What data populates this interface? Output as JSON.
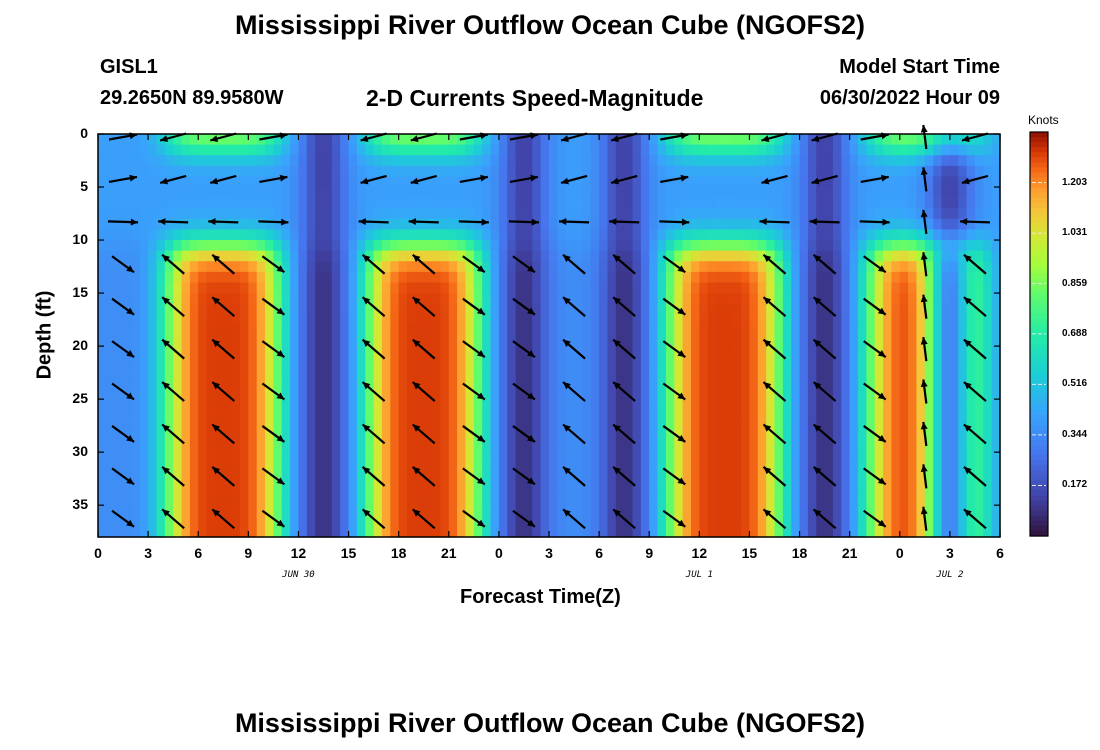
{
  "page": {
    "title": "Mississippi River Outflow Ocean Cube (NGOFS2)",
    "footer_title": "Mississippi River Outflow Ocean Cube (NGOFS2)",
    "station_id": "GISL1",
    "station_coords": "29.2650N  89.9580W",
    "plot_subtitle": "2-D Currents Speed-Magnitude",
    "model_start_label": "Model Start Time",
    "model_start_value": "06/30/2022 Hour 09"
  },
  "chart_data": {
    "type": "heatmap",
    "title": "2-D Currents Speed-Magnitude",
    "xlabel": "Forecast Time(Z)",
    "ylabel": "Depth (ft)",
    "x_tick_labels": [
      "0",
      "3",
      "6",
      "9",
      "12",
      "15",
      "18",
      "21",
      "0",
      "3",
      "6",
      "9",
      "12",
      "15",
      "18",
      "21",
      "0",
      "3",
      "6"
    ],
    "x_range_hours": [
      0,
      54
    ],
    "date_labels": [
      {
        "text": "JUN 30",
        "hour": 12
      },
      {
        "text": "JUL 1",
        "hour": 36
      },
      {
        "text": "JUL 2",
        "hour": 51
      }
    ],
    "y_ticks": [
      0,
      5,
      10,
      15,
      20,
      25,
      30,
      35
    ],
    "y_tick_labels": [
      "0",
      "5",
      "10",
      "15",
      "20",
      "25",
      "30",
      "35"
    ],
    "ylim": [
      0,
      38
    ],
    "colorbar": {
      "label": "Knots",
      "ticks": [
        1.203,
        1.031,
        0.859,
        0.688,
        0.516,
        0.344,
        0.172
      ],
      "tick_labels": [
        "1.203",
        "1.031",
        "0.859",
        "0.688",
        "0.516",
        "0.344",
        "0.172"
      ],
      "range": [
        0.0,
        1.375
      ]
    },
    "speed_model": {
      "ebb_peaks_hours": [
        7.5,
        19.5,
        37.5,
        49.5
      ],
      "slack_hours": [
        13.5,
        25.5,
        31.5,
        43.5,
        51.0
      ],
      "peak_speed_knots": 1.3,
      "min_speed_knots": 0.08
    },
    "vector_rows_depth_ft": [
      0,
      4,
      8,
      12,
      16,
      20,
      24,
      28,
      32,
      36
    ],
    "vector_cols_hours": [
      1.5,
      4.5,
      7.5,
      10.5,
      16.5,
      19.5,
      22.5,
      25.5,
      28.5,
      31.5,
      34.5,
      40.5,
      43.5,
      46.5,
      49.5,
      52.5
    ]
  }
}
